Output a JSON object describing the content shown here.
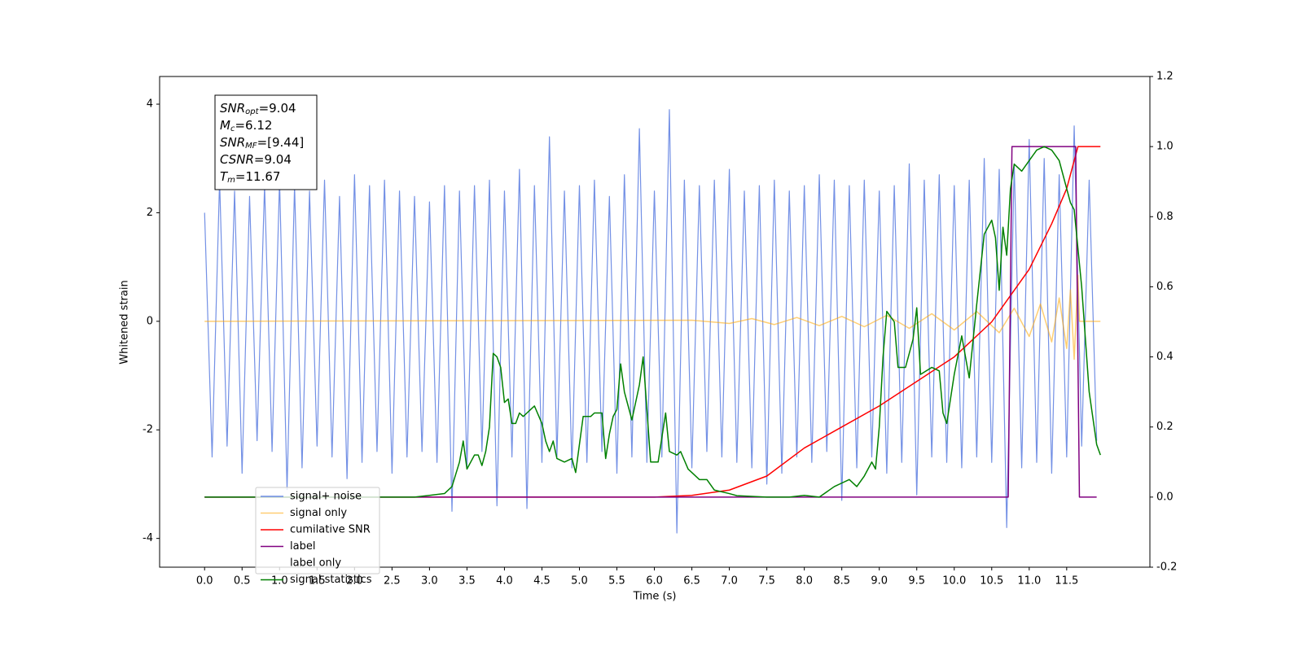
{
  "chart_data": {
    "type": "line",
    "xlabel": "Time (s)",
    "ylabel": "Whitened strain",
    "xlim": [
      -0.6,
      12.61
    ],
    "ylim": [
      -4.53,
      4.51
    ],
    "y2lim": [
      -0.2,
      1.2
    ],
    "xticks": [
      {
        "value": 0,
        "label": "0.0"
      },
      0.5,
      {
        "value": 1,
        "label": "1.0"
      },
      1.5,
      {
        "value": 2,
        "label": "2.0"
      },
      2.5,
      {
        "value": 3,
        "label": "3.0"
      },
      3.5,
      {
        "value": 4,
        "label": "4.0"
      },
      4.5,
      {
        "value": 5,
        "label": "5.0"
      },
      5.5,
      {
        "value": 6,
        "label": "6.0"
      },
      6.5,
      {
        "value": 7,
        "label": "7.0"
      },
      7.5,
      {
        "value": 8,
        "label": "8.0"
      },
      8.5,
      {
        "value": 9,
        "label": "9.0"
      },
      9.5,
      {
        "value": 10,
        "label": "10.0"
      },
      10.5,
      {
        "value": 11,
        "label": "11.0"
      },
      11.5
    ],
    "yticks": [
      -4,
      -2,
      0,
      2,
      4
    ],
    "y2ticks": [
      -0.2,
      {
        "value": 0,
        "label": "0.0"
      },
      0.2,
      0.4,
      0.6,
      0.8,
      {
        "value": 1,
        "label": "1.0"
      },
      1.2
    ],
    "annotation": [
      {
        "main": "SNR",
        "sub": "opt",
        "rest": "=9.04"
      },
      {
        "main": "M",
        "sub": "c",
        "rest": "=6.12"
      },
      {
        "main": "SNR",
        "sub": "MF",
        "rest": "=[9.44]"
      },
      {
        "main": "CSNR",
        "rest": "=9.04"
      },
      {
        "main": "T",
        "sub": "m",
        "rest": "=11.67"
      }
    ],
    "legend": "lower left",
    "series": [
      {
        "name": "signal+ noise",
        "color": "#6b8ae4",
        "x": [
          0,
          0.1,
          0.2,
          0.3,
          0.4,
          0.5,
          0.6,
          0.7,
          0.8,
          0.9,
          1,
          1.1,
          1.2,
          1.3,
          1.4,
          1.5,
          1.6,
          1.7,
          1.8,
          1.9,
          2,
          2.1,
          2.2,
          2.3,
          2.4,
          2.5,
          2.6,
          2.7,
          2.8,
          2.9,
          3,
          3.1,
          3.2,
          3.3,
          3.4,
          3.5,
          3.6,
          3.7,
          3.8,
          3.9,
          4,
          4.1,
          4.2,
          4.3,
          4.4,
          4.5,
          4.6,
          4.7,
          4.8,
          4.9,
          5,
          5.1,
          5.2,
          5.3,
          5.4,
          5.5,
          5.6,
          5.7,
          5.8,
          5.9,
          6,
          6.1,
          6.2,
          6.3,
          6.4,
          6.5,
          6.6,
          6.7,
          6.8,
          6.9,
          7,
          7.1,
          7.2,
          7.3,
          7.4,
          7.5,
          7.6,
          7.7,
          7.8,
          7.9,
          8,
          8.1,
          8.2,
          8.3,
          8.4,
          8.5,
          8.6,
          8.7,
          8.8,
          8.9,
          9,
          9.1,
          9.2,
          9.3,
          9.4,
          9.5,
          9.6,
          9.7,
          9.8,
          9.9,
          10,
          10.1,
          10.2,
          10.3,
          10.4,
          10.5,
          10.6,
          10.7,
          10.8,
          10.9,
          11,
          11.1,
          11.2,
          11.3,
          11.4,
          11.5,
          11.6,
          11.7,
          11.8,
          11.9
        ],
        "values": [
          2.0,
          -2.5,
          2.6,
          -2.3,
          2.4,
          -2.8,
          2.3,
          -2.2,
          2.5,
          -2.4,
          2.6,
          -3.1,
          2.5,
          -2.7,
          2.4,
          -2.3,
          2.6,
          -2.5,
          2.3,
          -2.9,
          2.7,
          -2.6,
          2.5,
          -2.4,
          2.6,
          -2.8,
          2.4,
          -2.5,
          2.3,
          -2.4,
          2.2,
          -2.6,
          2.5,
          -3.5,
          2.4,
          -2.7,
          2.5,
          -2.4,
          2.6,
          -3.4,
          2.4,
          -2.5,
          2.8,
          -3.45,
          2.5,
          -2.6,
          3.4,
          -2.5,
          2.4,
          -2.7,
          2.5,
          -2.6,
          2.6,
          -2.4,
          2.3,
          -2.8,
          2.7,
          -2.5,
          3.55,
          -2.6,
          2.4,
          -2.5,
          3.9,
          -3.9,
          2.6,
          -2.7,
          2.5,
          -2.4,
          2.6,
          -2.5,
          2.8,
          -2.6,
          2.4,
          -2.7,
          2.5,
          -3.0,
          2.6,
          -2.8,
          2.4,
          -2.5,
          2.5,
          -2.6,
          2.7,
          -2.4,
          2.6,
          -3.3,
          2.5,
          -2.7,
          2.6,
          -2.5,
          2.4,
          -2.8,
          2.5,
          -2.6,
          2.9,
          -3.2,
          2.6,
          -2.5,
          2.7,
          -2.6,
          2.5,
          -2.7,
          2.6,
          -2.5,
          3.0,
          -2.6,
          2.8,
          -3.8,
          2.9,
          -2.7,
          3.35,
          -2.6,
          3.0,
          -2.8,
          2.7,
          -2.5,
          3.6,
          -2.3,
          2.6,
          -2.2
        ]
      },
      {
        "name": "signal only",
        "color": "#ffa500",
        "x": [
          0,
          6.5,
          7.0,
          7.3,
          7.6,
          7.9,
          8.2,
          8.5,
          8.8,
          9.1,
          9.4,
          9.7,
          10.0,
          10.3,
          10.6,
          10.8,
          11.0,
          11.15,
          11.3,
          11.4,
          11.5,
          11.55,
          11.6,
          11.65,
          11.67,
          11.95
        ],
        "values": [
          0,
          0.02,
          -0.04,
          0.05,
          -0.06,
          0.07,
          -0.08,
          0.09,
          -0.1,
          0.11,
          -0.13,
          0.14,
          -0.16,
          0.18,
          -0.21,
          0.24,
          -0.28,
          0.32,
          -0.38,
          0.43,
          -0.5,
          0.58,
          -0.7,
          0.85,
          0,
          0
        ]
      },
      {
        "name": "cumilative SNR",
        "color": "#ff0000",
        "axis": "y2",
        "x": [
          0,
          6.0,
          6.5,
          7.0,
          7.5,
          8.0,
          8.5,
          9.0,
          9.5,
          10.0,
          10.5,
          11.0,
          11.3,
          11.5,
          11.65,
          11.95
        ],
        "values": [
          0,
          0,
          0.005,
          0.02,
          0.06,
          0.14,
          0.2,
          0.26,
          0.33,
          0.4,
          0.5,
          0.65,
          0.78,
          0.88,
          1.0,
          1.0
        ]
      },
      {
        "name": "label",
        "color": "#800080",
        "axis": "y2",
        "x": [
          0,
          10.72,
          10.77,
          11.62,
          11.67,
          11.9
        ],
        "values": [
          0,
          0,
          1,
          1,
          0,
          0
        ]
      },
      {
        "name": "label only"
      },
      {
        "name": "signal statistics",
        "color": "#008000",
        "axis": "y2",
        "x": [
          0,
          2.8,
          3.0,
          3.2,
          3.3,
          3.4,
          3.45,
          3.5,
          3.6,
          3.65,
          3.7,
          3.75,
          3.8,
          3.85,
          3.9,
          3.95,
          4.0,
          4.05,
          4.1,
          4.15,
          4.2,
          4.25,
          4.3,
          4.35,
          4.4,
          4.5,
          4.55,
          4.6,
          4.65,
          4.7,
          4.8,
          4.9,
          4.95,
          5.0,
          5.05,
          5.15,
          5.2,
          5.3,
          5.35,
          5.4,
          5.45,
          5.5,
          5.55,
          5.6,
          5.65,
          5.7,
          5.8,
          5.85,
          5.9,
          5.95,
          6.05,
          6.15,
          6.2,
          6.3,
          6.35,
          6.45,
          6.5,
          6.6,
          6.7,
          6.8,
          7.0,
          7.1,
          7.5,
          7.8,
          8.0,
          8.2,
          8.4,
          8.5,
          8.6,
          8.7,
          8.8,
          8.9,
          8.95,
          9.0,
          9.05,
          9.1,
          9.2,
          9.25,
          9.35,
          9.45,
          9.5,
          9.55,
          9.7,
          9.8,
          9.85,
          9.9,
          10.0,
          10.1,
          10.2,
          10.3,
          10.4,
          10.5,
          10.55,
          10.6,
          10.65,
          10.7,
          10.75,
          10.8,
          10.9,
          11.0,
          11.1,
          11.2,
          11.3,
          11.4,
          11.5,
          11.55,
          11.6,
          11.7,
          11.8,
          11.9,
          11.95
        ],
        "values": [
          0,
          0,
          0.005,
          0.01,
          0.03,
          0.1,
          0.16,
          0.08,
          0.12,
          0.12,
          0.09,
          0.13,
          0.2,
          0.41,
          0.4,
          0.37,
          0.27,
          0.28,
          0.21,
          0.21,
          0.24,
          0.23,
          0.24,
          0.25,
          0.26,
          0.21,
          0.16,
          0.13,
          0.16,
          0.11,
          0.1,
          0.11,
          0.07,
          0.15,
          0.23,
          0.23,
          0.24,
          0.24,
          0.11,
          0.18,
          0.23,
          0.25,
          0.38,
          0.3,
          0.26,
          0.22,
          0.32,
          0.4,
          0.25,
          0.1,
          0.1,
          0.24,
          0.13,
          0.12,
          0.13,
          0.08,
          0.07,
          0.05,
          0.05,
          0.02,
          0.01,
          0.004,
          0,
          0,
          0.005,
          0,
          0.03,
          0.04,
          0.05,
          0.03,
          0.06,
          0.1,
          0.08,
          0.2,
          0.4,
          0.53,
          0.5,
          0.37,
          0.37,
          0.45,
          0.54,
          0.35,
          0.37,
          0.36,
          0.24,
          0.21,
          0.35,
          0.46,
          0.34,
          0.55,
          0.75,
          0.79,
          0.74,
          0.59,
          0.77,
          0.69,
          0.88,
          0.95,
          0.93,
          0.96,
          0.99,
          1.0,
          0.99,
          0.96,
          0.88,
          0.84,
          0.82,
          0.6,
          0.3,
          0.15,
          0.12
        ]
      }
    ]
  }
}
